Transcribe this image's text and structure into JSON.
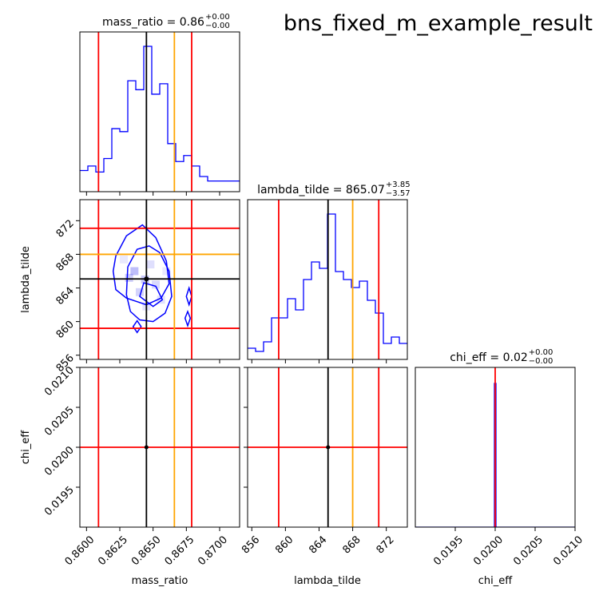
{
  "figure_title": "bns_fixed_m_example_result",
  "colors": {
    "hist": "#0000ff",
    "contour": "#0000ff",
    "median_line": "#000000",
    "injection_line": "#ffa500",
    "quantile_line": "#ff0000"
  },
  "chart_data": {
    "type": "corner",
    "parameters": [
      "mass_ratio",
      "lambda_tilde",
      "chi_eff"
    ],
    "diagonal_titles": [
      {
        "name": "mass_ratio",
        "value": "0.86",
        "plus": "+0.00",
        "minus": "−0.00"
      },
      {
        "name": "lambda_tilde",
        "value": "865.07",
        "plus": "+3.85",
        "minus": "−3.57"
      },
      {
        "name": "chi_eff",
        "value": "0.02",
        "plus": "+0.00",
        "minus": "−0.00"
      }
    ],
    "axes": {
      "mass_ratio": {
        "range": [
          0.8595,
          0.8715
        ],
        "ticks": [
          0.86,
          0.8625,
          0.865,
          0.8675,
          0.87
        ],
        "tick_labels": [
          "0.8600",
          "0.8625",
          "0.8650",
          "0.8675",
          "0.8700"
        ]
      },
      "lambda_tilde": {
        "range": [
          855.5,
          874.5
        ],
        "ticks": [
          856,
          860,
          864,
          868,
          872
        ],
        "tick_labels": [
          "856",
          "860",
          "864",
          "868",
          "872"
        ]
      },
      "chi_eff": {
        "range": [
          0.019,
          0.021
        ],
        "ticks": [
          0.0195,
          0.02,
          0.0205,
          0.021
        ],
        "tick_labels": [
          "0.0195",
          "0.0200",
          "0.0205",
          "0.0210"
        ]
      }
    },
    "lines": {
      "mass_ratio": {
        "quantile_low": 0.8609,
        "median": 0.8645,
        "injection": 0.8666,
        "quantile_high": 0.8679
      },
      "lambda_tilde": {
        "quantile_low": 859.2,
        "median": 865.07,
        "injection": 868.0,
        "quantile_high": 871.1
      },
      "chi_eff": {
        "quantile_low": 0.02,
        "median": 0.02,
        "injection": 0.02,
        "quantile_high": 0.02
      }
    },
    "histograms": {
      "mass_ratio": {
        "edges": [
          0.8595,
          0.8601,
          0.8607,
          0.8613,
          0.8619,
          0.8625,
          0.8631,
          0.8637,
          0.8643,
          0.8649,
          0.8655,
          0.8661,
          0.8667,
          0.8673,
          0.8679,
          0.8685,
          0.8691,
          0.8697,
          0.8703,
          0.8709,
          0.8715
        ],
        "counts": [
          0.12,
          0.15,
          0.11,
          0.2,
          0.4,
          0.38,
          0.72,
          0.66,
          0.95,
          0.63,
          0.7,
          0.3,
          0.18,
          0.22,
          0.15,
          0.08,
          0.05,
          0.05,
          0.05,
          0.05
        ]
      },
      "lambda_tilde": {
        "edges": [
          855.5,
          856.45,
          857.4,
          858.35,
          859.3,
          860.25,
          861.2,
          862.15,
          863.1,
          864.05,
          865.0,
          865.95,
          866.9,
          867.85,
          868.8,
          869.75,
          870.7,
          871.65,
          872.6,
          873.55,
          874.5
        ],
        "counts": [
          0.05,
          0.03,
          0.09,
          0.24,
          0.24,
          0.36,
          0.29,
          0.48,
          0.59,
          0.55,
          0.89,
          0.53,
          0.48,
          0.43,
          0.47,
          0.35,
          0.27,
          0.08,
          0.12,
          0.08
        ]
      },
      "chi_eff": {
        "edges": [
          0.01999,
          0.02001
        ],
        "counts": [
          1.0
        ]
      }
    },
    "contours_2d": {
      "panel": "mass_ratio vs lambda_tilde",
      "levels": [
        [
          [
            0.863,
            863.2
          ],
          [
            0.8633,
            861.2
          ],
          [
            0.864,
            860.2
          ],
          [
            0.865,
            860.0
          ],
          [
            0.8659,
            861.0
          ],
          [
            0.8664,
            863.0
          ],
          [
            0.8662,
            866.0
          ],
          [
            0.8655,
            868.2
          ],
          [
            0.8647,
            869.0
          ],
          [
            0.8638,
            868.6
          ],
          [
            0.8631,
            866.5
          ]
        ],
        [
          [
            0.862,
            866.0
          ],
          [
            0.8622,
            863.8
          ],
          [
            0.863,
            862.8
          ],
          [
            0.8645,
            862.0
          ],
          [
            0.8656,
            862.8
          ],
          [
            0.8662,
            864.5
          ],
          [
            0.866,
            867.2
          ],
          [
            0.8652,
            870.0
          ],
          [
            0.8642,
            871.5
          ],
          [
            0.863,
            870.2
          ],
          [
            0.8622,
            867.8
          ]
        ],
        [
          [
            0.864,
            863.0
          ],
          [
            0.865,
            861.8
          ],
          [
            0.8657,
            862.6
          ],
          [
            0.8652,
            864.2
          ],
          [
            0.8643,
            864.6
          ]
        ],
        [
          [
            0.8675,
            863.0
          ],
          [
            0.8677,
            862.0
          ],
          [
            0.8679,
            863.0
          ],
          [
            0.8677,
            864.0
          ]
        ],
        [
          [
            0.8674,
            860.4
          ],
          [
            0.8676,
            859.5
          ],
          [
            0.8678,
            860.4
          ],
          [
            0.8676,
            861.2
          ]
        ],
        [
          [
            0.8635,
            859.4
          ],
          [
            0.8638,
            858.7
          ],
          [
            0.8641,
            859.4
          ],
          [
            0.8638,
            860.1
          ]
        ]
      ]
    },
    "density_cells": [
      {
        "x": 0.8636,
        "y": 866.0,
        "w": 0.6
      },
      {
        "x": 0.8644,
        "y": 865.0,
        "w": 0.5
      },
      {
        "x": 0.8632,
        "y": 865.2,
        "w": 0.45
      },
      {
        "x": 0.864,
        "y": 863.5,
        "w": 0.4
      },
      {
        "x": 0.8652,
        "y": 864.4,
        "w": 0.35
      },
      {
        "x": 0.8648,
        "y": 866.8,
        "w": 0.3
      },
      {
        "x": 0.8656,
        "y": 862.6,
        "w": 0.28
      },
      {
        "x": 0.8645,
        "y": 861.8,
        "w": 0.25
      },
      {
        "x": 0.8628,
        "y": 867.4,
        "w": 0.2
      },
      {
        "x": 0.866,
        "y": 866.0,
        "w": 0.2
      }
    ]
  }
}
